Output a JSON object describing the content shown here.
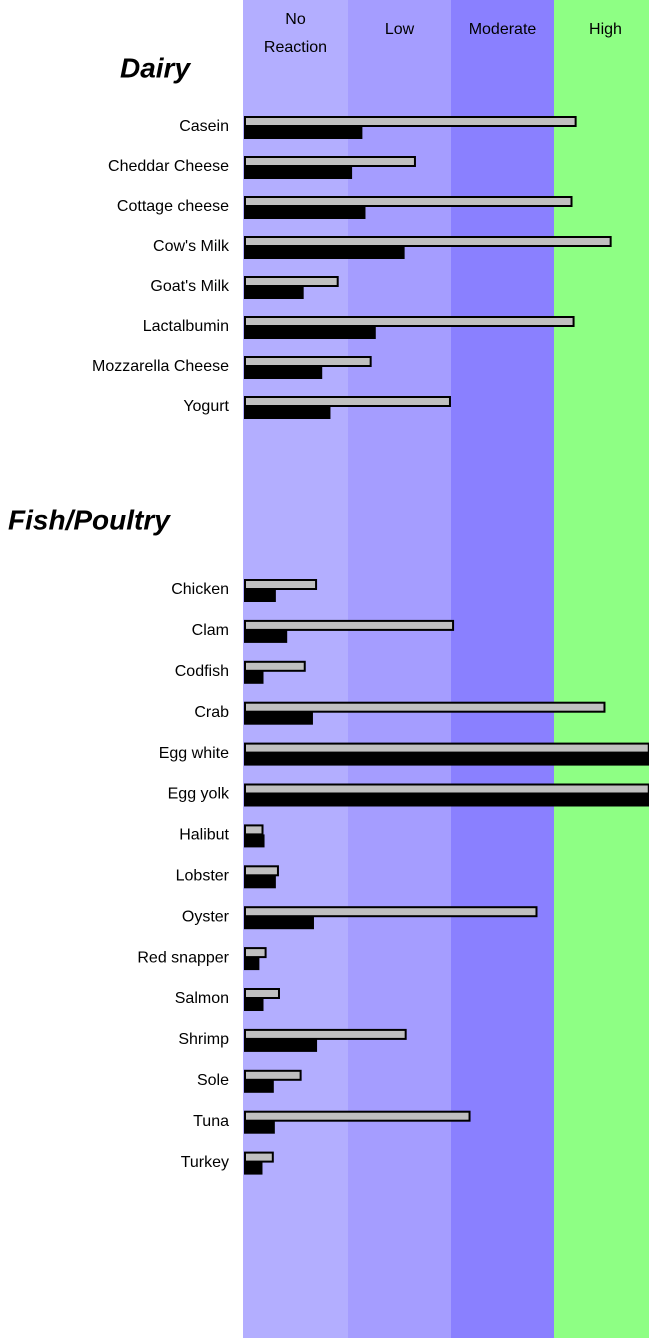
{
  "chart_data": {
    "type": "bar",
    "xlim": [
      0,
      4
    ],
    "xticks": [
      0,
      1,
      2,
      3,
      4
    ],
    "bands": [
      {
        "label": "No Reaction",
        "color": "#b3aeff"
      },
      {
        "label": "Low",
        "color": "#a59dff"
      },
      {
        "label": "Moderate",
        "color": "#8a80ff"
      },
      {
        "label": "High",
        "color": "#8eff84"
      }
    ],
    "groups": [
      {
        "title": "Dairy",
        "categories": [
          "Casein",
          "Cheddar Cheese",
          "Cottage cheese",
          "Cow's Milk",
          "Goat's Milk",
          "Lactalbumin",
          "Mozzarella Cheese",
          "Yogurt"
        ],
        "series": [
          {
            "color": "#c0c0c0",
            "values": [
              3.21,
              1.65,
              3.17,
              3.55,
              0.9,
              3.19,
              1.22,
              1.99
            ]
          },
          {
            "color": "#000000",
            "values": [
              1.13,
              1.03,
              1.16,
              1.54,
              0.56,
              1.26,
              0.74,
              0.82
            ]
          }
        ]
      },
      {
        "title": "Fish/Poultry",
        "categories": [
          "Chicken",
          "Clam",
          "Codfish",
          "Crab",
          "Egg white",
          "Egg yolk",
          "Halibut",
          "Lobster",
          "Oyster",
          "Red snapper",
          "Salmon",
          "Shrimp",
          "Sole",
          "Tuna",
          "Turkey"
        ],
        "series": [
          {
            "color": "#c0c0c0",
            "values": [
              0.69,
              2.02,
              0.58,
              3.49,
              3.92,
              3.92,
              0.17,
              0.32,
              2.83,
              0.2,
              0.33,
              1.56,
              0.54,
              2.18,
              0.27
            ]
          },
          {
            "color": "#000000",
            "values": [
              0.29,
              0.4,
              0.17,
              0.65,
              3.92,
              3.92,
              0.18,
              0.29,
              0.66,
              0.13,
              0.17,
              0.69,
              0.27,
              0.28,
              0.16
            ]
          }
        ]
      }
    ]
  }
}
